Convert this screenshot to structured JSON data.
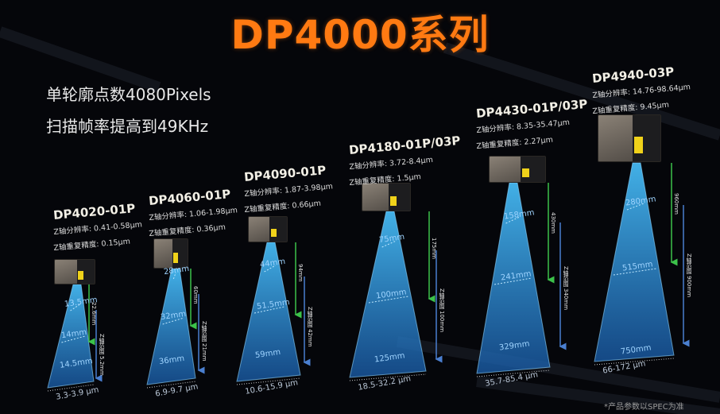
{
  "header": {
    "title": "DP4000系列",
    "subtitle_line1": "单轮廓点数4080Pixels",
    "subtitle_line2": "扫描帧率提高到49KHz"
  },
  "colors": {
    "title": "#ff7a12",
    "beam": "#2a8fe0",
    "working_distance_arrow": "#3cc24a",
    "range_arrow": "#4a7fd0"
  },
  "products": [
    {
      "name": "DP4020-01P",
      "z_resolution": "Z轴分辨率: 0.41-0.58μm",
      "z_repeatability": "Z轴重复精度: 0.15μm",
      "near_width": "13.5mm",
      "mid_width": "14mm",
      "far_width": "14.5mm",
      "xy_resolution": "3.3-3.9 μm",
      "distance": "22.6mm",
      "range": "Z轴范围  5.2mm"
    },
    {
      "name": "DP4060-01P",
      "z_resolution": "Z轴分辨率: 1.06-1.98μm",
      "z_repeatability": "Z轴重复精度: 0.36μm",
      "near_width": "28mm",
      "mid_width": "32mm",
      "far_width": "36mm",
      "xy_resolution": "6.9-9.7 μm",
      "distance": "60mm",
      "range": "Z轴范围  21mm"
    },
    {
      "name": "DP4090-01P",
      "z_resolution": "Z轴分辨率: 1.87-3.98μm",
      "z_repeatability": "Z轴重复精度: 0.66μm",
      "near_width": "44mm",
      "mid_width": "51.5mm",
      "far_width": "59mm",
      "xy_resolution": "10.6-15.9 μm",
      "distance": "94mm",
      "range": "Z轴范围  42mm"
    },
    {
      "name": "DP4180-01P/03P",
      "z_resolution": "Z轴分辨率: 3.72-8.4μm",
      "z_repeatability": "Z轴重复精度: 1.5μm",
      "near_width": "75mm",
      "mid_width": "100mm",
      "far_width": "125mm",
      "xy_resolution": "18.5-32.2 μm",
      "distance": "175mm",
      "range": "Z轴范围  100mm"
    },
    {
      "name": "DP4430-01P/03P",
      "z_resolution": "Z轴分辨率: 8.35-35.47μm",
      "z_repeatability": "Z轴重复精度: 2.27μm",
      "near_width": "158mm",
      "mid_width": "241mm",
      "far_width": "329mm",
      "xy_resolution": "35.7-85.4 μm",
      "distance": "430mm",
      "range": "Z轴范围  340mm"
    },
    {
      "name": "DP4940-03P",
      "z_resolution": "Z轴分辨率: 14.76-98.64μm",
      "z_repeatability": "Z轴重复精度: 9.45μm",
      "near_width": "280mm",
      "mid_width": "515mm",
      "far_width": "750mm",
      "xy_resolution": "66-172 μm",
      "distance": "960mm",
      "range": "Z轴范围  900mm"
    }
  ],
  "footnote": "*产品参数以SPEC为准"
}
